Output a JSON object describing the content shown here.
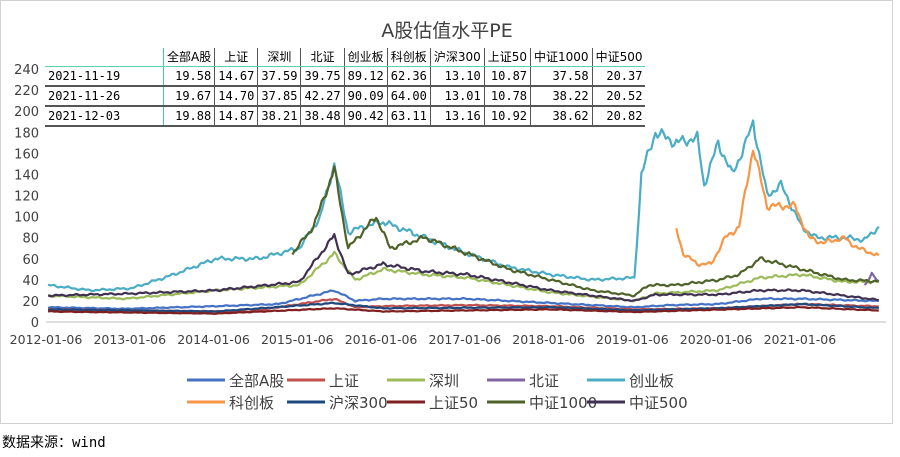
{
  "chart_data": {
    "type": "line",
    "title": "A股估值水平PE",
    "ylim": [
      0,
      240
    ],
    "yticks": [
      0,
      20,
      40,
      60,
      80,
      100,
      120,
      140,
      160,
      180,
      200,
      220,
      240
    ],
    "xticks": [
      "2012-01-06",
      "2013-01-06",
      "2014-01-06",
      "2015-01-06",
      "2016-01-06",
      "2017-01-06",
      "2018-01-06",
      "2019-01-06",
      "2020-01-06",
      "2021-01-06"
    ],
    "xrange": [
      "2012-01-06",
      "2021-12-03"
    ],
    "grid": false,
    "legend": "bottom",
    "series": [
      {
        "name": "全部A股",
        "color": "#4472C4",
        "points": [
          [
            "2012-01",
            14
          ],
          [
            "2012-12",
            12.5
          ],
          [
            "2014-01",
            15
          ],
          [
            "2014-10",
            17
          ],
          [
            "2015-06",
            30
          ],
          [
            "2015-09",
            20
          ],
          [
            "2016-01",
            22
          ],
          [
            "2017-01",
            22
          ],
          [
            "2018-01",
            18
          ],
          [
            "2019-01",
            14
          ],
          [
            "2019-06",
            16
          ],
          [
            "2020-01",
            17
          ],
          [
            "2020-07",
            22
          ],
          [
            "2021-01",
            22
          ],
          [
            "2021-12",
            19.88
          ]
        ]
      },
      {
        "name": "上证",
        "color": "#C0504D",
        "points": [
          [
            "2012-01",
            12
          ],
          [
            "2013-06",
            10.5
          ],
          [
            "2014-06",
            10
          ],
          [
            "2015-06",
            22
          ],
          [
            "2015-09",
            14
          ],
          [
            "2016-01",
            15
          ],
          [
            "2017-01",
            16
          ],
          [
            "2018-01",
            15
          ],
          [
            "2019-01",
            12
          ],
          [
            "2020-01",
            13
          ],
          [
            "2021-01",
            17
          ],
          [
            "2021-12",
            14.87
          ]
        ]
      },
      {
        "name": "深圳",
        "color": "#9BBB59",
        "points": [
          [
            "2012-01",
            25
          ],
          [
            "2012-12",
            22
          ],
          [
            "2014-01",
            30
          ],
          [
            "2015-01",
            35
          ],
          [
            "2015-06",
            65
          ],
          [
            "2015-09",
            40
          ],
          [
            "2016-01",
            50
          ],
          [
            "2016-07",
            45
          ],
          [
            "2017-01",
            42
          ],
          [
            "2018-01",
            28
          ],
          [
            "2019-01",
            20
          ],
          [
            "2019-04",
            27
          ],
          [
            "2020-01",
            30
          ],
          [
            "2020-07",
            42
          ],
          [
            "2021-01",
            45
          ],
          [
            "2021-07",
            38
          ],
          [
            "2021-12",
            38.21
          ]
        ]
      },
      {
        "name": "北证",
        "color": "#8064A2",
        "points": [
          [
            "2021-10",
            35
          ],
          [
            "2021-11",
            45
          ],
          [
            "2021-12",
            38.48
          ]
        ]
      },
      {
        "name": "创业板",
        "color": "#4BACC6",
        "points": [
          [
            "2012-01",
            35
          ],
          [
            "2012-07",
            30
          ],
          [
            "2013-01",
            32
          ],
          [
            "2013-07",
            45
          ],
          [
            "2014-01",
            60
          ],
          [
            "2014-07",
            60
          ],
          [
            "2015-01",
            70
          ],
          [
            "2015-04",
            100
          ],
          [
            "2015-06",
            150
          ],
          [
            "2015-08",
            85
          ],
          [
            "2015-10",
            90
          ],
          [
            "2016-01",
            95
          ],
          [
            "2016-07",
            80
          ],
          [
            "2017-01",
            65
          ],
          [
            "2017-07",
            52
          ],
          [
            "2018-01",
            45
          ],
          [
            "2018-07",
            40
          ],
          [
            "2019-01",
            42
          ],
          [
            "2019-02",
            140
          ],
          [
            "2019-04",
            180
          ],
          [
            "2019-07",
            170
          ],
          [
            "2019-10",
            175
          ],
          [
            "2019-11",
            130
          ],
          [
            "2020-01",
            170
          ],
          [
            "2020-03",
            140
          ],
          [
            "2020-05",
            170
          ],
          [
            "2020-06",
            190
          ],
          [
            "2020-08",
            120
          ],
          [
            "2020-10",
            130
          ],
          [
            "2021-01",
            90
          ],
          [
            "2021-03",
            80
          ],
          [
            "2021-07",
            80
          ],
          [
            "2021-10",
            78
          ],
          [
            "2021-12",
            90.42
          ]
        ]
      },
      {
        "name": "科创板",
        "color": "#F79646",
        "points": [
          [
            "2019-07",
            88
          ],
          [
            "2019-08",
            65
          ],
          [
            "2019-10",
            55
          ],
          [
            "2019-12",
            55
          ],
          [
            "2020-02",
            80
          ],
          [
            "2020-04",
            90
          ],
          [
            "2020-06",
            165
          ],
          [
            "2020-08",
            110
          ],
          [
            "2020-12",
            110
          ],
          [
            "2021-02",
            80
          ],
          [
            "2021-04",
            75
          ],
          [
            "2021-07",
            80
          ],
          [
            "2021-09",
            70
          ],
          [
            "2021-12",
            63.11
          ]
        ]
      },
      {
        "name": "沪深300",
        "color": "#1F497D",
        "points": [
          [
            "2012-01",
            12
          ],
          [
            "2014-01",
            10
          ],
          [
            "2015-06",
            18
          ],
          [
            "2016-01",
            13
          ],
          [
            "2018-01",
            14
          ],
          [
            "2019-01",
            11
          ],
          [
            "2020-01",
            13
          ],
          [
            "2021-01",
            17
          ],
          [
            "2021-12",
            13.16
          ]
        ]
      },
      {
        "name": "上证50",
        "color": "#7F1F1F",
        "points": [
          [
            "2012-01",
            10
          ],
          [
            "2014-01",
            8
          ],
          [
            "2015-06",
            13
          ],
          [
            "2016-01",
            10
          ],
          [
            "2018-01",
            12
          ],
          [
            "2019-01",
            9.5
          ],
          [
            "2021-01",
            14
          ],
          [
            "2021-12",
            10.92
          ]
        ]
      },
      {
        "name": "中证1000",
        "color": "#4F6228",
        "points": [
          [
            "2014-12",
            65
          ],
          [
            "2015-03",
            90
          ],
          [
            "2015-06",
            145
          ],
          [
            "2015-08",
            70
          ],
          [
            "2015-12",
            100
          ],
          [
            "2016-02",
            70
          ],
          [
            "2016-07",
            80
          ],
          [
            "2017-01",
            65
          ],
          [
            "2017-07",
            50
          ],
          [
            "2018-01",
            40
          ],
          [
            "2018-07",
            30
          ],
          [
            "2019-01",
            25
          ],
          [
            "2019-03",
            35
          ],
          [
            "2019-07",
            35
          ],
          [
            "2020-01",
            40
          ],
          [
            "2020-04",
            45
          ],
          [
            "2020-07",
            60
          ],
          [
            "2021-01",
            50
          ],
          [
            "2021-07",
            40
          ],
          [
            "2021-12",
            38.62
          ]
        ]
      },
      {
        "name": "中证500",
        "color": "#403152",
        "points": [
          [
            "2012-01",
            25
          ],
          [
            "2013-01",
            27
          ],
          [
            "2014-01",
            30
          ],
          [
            "2015-01",
            38
          ],
          [
            "2015-06",
            82
          ],
          [
            "2015-08",
            45
          ],
          [
            "2016-01",
            55
          ],
          [
            "2016-07",
            48
          ],
          [
            "2017-01",
            45
          ],
          [
            "2018-01",
            30
          ],
          [
            "2019-01",
            20
          ],
          [
            "2019-04",
            26
          ],
          [
            "2020-01",
            26
          ],
          [
            "2020-07",
            30
          ],
          [
            "2021-01",
            30
          ],
          [
            "2021-07",
            25
          ],
          [
            "2021-12",
            20.82
          ]
        ]
      }
    ]
  },
  "table": {
    "headers": [
      "",
      "全部A股",
      "上证",
      "深圳",
      "北证",
      "创业板",
      "科创板",
      "沪深300",
      "上证50",
      "中证1000",
      "中证500"
    ],
    "rows": [
      [
        "2021-11-19",
        "19.58",
        "14.67",
        "37.59",
        "39.75",
        "89.12",
        "62.36",
        "13.10",
        "10.87",
        "37.58",
        "20.37"
      ],
      [
        "2021-11-26",
        "19.67",
        "14.70",
        "37.85",
        "42.27",
        "90.09",
        "64.00",
        "13.01",
        "10.78",
        "38.22",
        "20.52"
      ],
      [
        "2021-12-03",
        "19.88",
        "14.87",
        "38.21",
        "38.48",
        "90.42",
        "63.11",
        "13.16",
        "10.92",
        "38.62",
        "20.82"
      ]
    ]
  },
  "source": "数据来源：wind"
}
